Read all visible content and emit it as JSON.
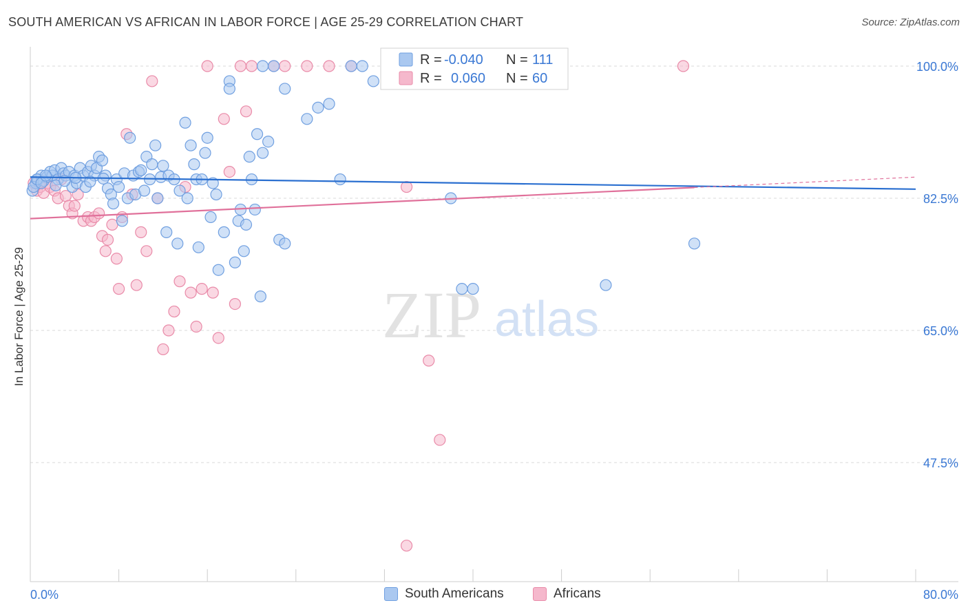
{
  "header": {
    "title": "SOUTH AMERICAN VS AFRICAN IN LABOR FORCE | AGE 25-29 CORRELATION CHART",
    "source": "Source: ZipAtlas.com"
  },
  "watermark": {
    "zip": "ZIP",
    "atlas": "atlas"
  },
  "legend_top": {
    "rows": [
      {
        "r_label": "R =",
        "r_value": "-0.040",
        "n_label": "N =",
        "n_value": "111"
      },
      {
        "r_label": "R =",
        "r_value": "0.060",
        "n_label": "N =",
        "n_value": "60"
      }
    ]
  },
  "colors": {
    "blue_fill": "#aac8f0",
    "blue_stroke": "#6f9fe0",
    "blue_line": "#2a6fd0",
    "pink_fill": "#f5b8cc",
    "pink_stroke": "#e98aa8",
    "pink_line": "#e0709a",
    "axis_text": "#3a78d4",
    "grid": "#d8d8d8"
  },
  "chart_data": {
    "type": "scatter",
    "title": "SOUTH AMERICAN VS AFRICAN IN LABOR FORCE | AGE 25-29 CORRELATION CHART",
    "xlabel": "",
    "ylabel": "In Labor Force | Age 25-29",
    "xlim": [
      0,
      80
    ],
    "ylim": [
      30,
      102
    ],
    "x_tick_labels": [
      "0.0%",
      "80.0%"
    ],
    "y_ticks": [
      47.5,
      65.0,
      82.5,
      100.0
    ],
    "y_tick_labels": [
      "47.5%",
      "65.0%",
      "82.5%",
      "100.0%"
    ],
    "grid": true,
    "legend_position": "top-center",
    "series": [
      {
        "name": "South Americans",
        "r": -0.04,
        "n": 111,
        "trend": {
          "x": [
            0,
            80
          ],
          "y": [
            85.3,
            83.7
          ]
        },
        "points": [
          [
            0.2,
            83.5
          ],
          [
            0.5,
            84.5
          ],
          [
            0.7,
            85
          ],
          [
            1,
            85.5
          ],
          [
            1.2,
            84.8
          ],
          [
            1.5,
            85.3
          ],
          [
            1.8,
            86
          ],
          [
            2,
            85.5
          ],
          [
            2.2,
            86.2
          ],
          [
            2.5,
            85
          ],
          [
            2.8,
            86.5
          ],
          [
            3,
            85.8
          ],
          [
            3.2,
            85.5
          ],
          [
            3.5,
            86
          ],
          [
            3.8,
            84
          ],
          [
            4,
            85.5
          ],
          [
            4.2,
            84.5
          ],
          [
            4.5,
            86.5
          ],
          [
            4.8,
            85.5
          ],
          [
            5,
            84
          ],
          [
            5.2,
            86
          ],
          [
            5.5,
            86.8
          ],
          [
            5.8,
            85.5
          ],
          [
            6,
            86.5
          ],
          [
            6.2,
            88
          ],
          [
            6.5,
            87.5
          ],
          [
            6.8,
            85.5
          ],
          [
            7,
            83.8
          ],
          [
            7.3,
            83
          ],
          [
            7.5,
            81.8
          ],
          [
            7.8,
            85
          ],
          [
            8,
            84
          ],
          [
            8.3,
            79.5
          ],
          [
            8.5,
            85.8
          ],
          [
            8.8,
            82.5
          ],
          [
            9,
            90.5
          ],
          [
            9.3,
            85.5
          ],
          [
            9.5,
            83
          ],
          [
            9.8,
            86
          ],
          [
            10,
            86.2
          ],
          [
            10.3,
            83.5
          ],
          [
            10.5,
            88
          ],
          [
            10.8,
            85
          ],
          [
            11,
            87
          ],
          [
            11.3,
            89.5
          ],
          [
            11.5,
            82.5
          ],
          [
            11.8,
            85.3
          ],
          [
            12,
            86.8
          ],
          [
            12.3,
            78
          ],
          [
            12.5,
            85.5
          ],
          [
            13,
            85
          ],
          [
            13.3,
            76.5
          ],
          [
            13.5,
            83.5
          ],
          [
            14,
            92.5
          ],
          [
            14.2,
            82.5
          ],
          [
            14.5,
            89.5
          ],
          [
            14.8,
            87
          ],
          [
            15,
            85
          ],
          [
            15.2,
            76
          ],
          [
            15.5,
            85
          ],
          [
            15.8,
            88.5
          ],
          [
            16,
            90.5
          ],
          [
            16.3,
            80
          ],
          [
            16.5,
            84.5
          ],
          [
            16.8,
            83
          ],
          [
            17,
            73
          ],
          [
            17.5,
            78
          ],
          [
            18,
            98
          ],
          [
            18.5,
            74
          ],
          [
            18.8,
            79.5
          ],
          [
            19,
            81
          ],
          [
            19.3,
            75.5
          ],
          [
            19.5,
            79
          ],
          [
            19.8,
            88
          ],
          [
            20,
            85
          ],
          [
            20.3,
            81
          ],
          [
            20.5,
            91
          ],
          [
            20.8,
            69.5
          ],
          [
            21,
            88.5
          ],
          [
            21.5,
            90
          ],
          [
            22,
            100
          ],
          [
            22.5,
            77
          ],
          [
            23,
            76.5
          ],
          [
            25,
            93
          ],
          [
            26,
            94.5
          ],
          [
            38,
            82.5
          ],
          [
            39,
            70.5
          ],
          [
            40,
            70.5
          ],
          [
            52,
            71
          ],
          [
            60,
            76.5
          ],
          [
            28,
            85
          ],
          [
            29,
            100
          ],
          [
            30,
            100
          ],
          [
            31,
            98
          ],
          [
            18,
            97
          ],
          [
            21,
            100
          ],
          [
            23,
            97
          ],
          [
            27,
            95
          ],
          [
            0.3,
            84
          ],
          [
            0.6,
            85
          ],
          [
            1,
            84.5
          ],
          [
            1.4,
            85.5
          ],
          [
            2.3,
            84.2
          ],
          [
            3.1,
            84.8
          ],
          [
            4.1,
            85.2
          ],
          [
            5.4,
            84.7
          ],
          [
            6.6,
            85.1
          ]
        ]
      },
      {
        "name": "Africans",
        "r": 0.06,
        "n": 60,
        "trend": {
          "x": [
            0,
            80
          ],
          "y": [
            79.8,
            85.3
          ]
        },
        "points": [
          [
            0.3,
            84.5
          ],
          [
            0.6,
            83.5
          ],
          [
            0.9,
            84
          ],
          [
            1.2,
            83.2
          ],
          [
            1.5,
            84.5
          ],
          [
            1.8,
            84
          ],
          [
            2.2,
            83.5
          ],
          [
            2.5,
            82.5
          ],
          [
            2.8,
            85
          ],
          [
            3.2,
            82.8
          ],
          [
            3.5,
            81.5
          ],
          [
            3.8,
            80.5
          ],
          [
            4,
            81.5
          ],
          [
            4.3,
            83
          ],
          [
            4.8,
            79.5
          ],
          [
            5.2,
            80
          ],
          [
            5.5,
            79.5
          ],
          [
            5.8,
            80
          ],
          [
            6.2,
            80.5
          ],
          [
            6.5,
            77.5
          ],
          [
            6.8,
            75.5
          ],
          [
            7,
            77
          ],
          [
            7.4,
            79
          ],
          [
            7.8,
            74.5
          ],
          [
            8,
            70.5
          ],
          [
            8.3,
            80
          ],
          [
            8.7,
            91
          ],
          [
            9.2,
            83
          ],
          [
            9.6,
            71
          ],
          [
            10,
            78
          ],
          [
            10.5,
            75.5
          ],
          [
            11,
            98
          ],
          [
            11.5,
            82.5
          ],
          [
            12,
            62.5
          ],
          [
            12.5,
            65
          ],
          [
            13,
            67.5
          ],
          [
            13.5,
            71.5
          ],
          [
            14,
            84
          ],
          [
            14.5,
            70
          ],
          [
            15,
            65.5
          ],
          [
            15.5,
            70.5
          ],
          [
            16,
            100
          ],
          [
            16.5,
            70
          ],
          [
            17,
            64
          ],
          [
            17.5,
            93
          ],
          [
            18,
            86
          ],
          [
            18.5,
            68.5
          ],
          [
            19,
            100
          ],
          [
            19.5,
            94
          ],
          [
            20,
            100
          ],
          [
            22,
            100
          ],
          [
            23,
            100
          ],
          [
            25,
            100
          ],
          [
            27,
            100
          ],
          [
            29,
            100
          ],
          [
            34,
            84
          ],
          [
            36,
            61
          ],
          [
            37,
            50.5
          ],
          [
            34,
            36.5
          ],
          [
            59,
            100
          ]
        ]
      }
    ]
  },
  "legend_bottom": {
    "items": [
      "South Americans",
      "Africans"
    ]
  }
}
